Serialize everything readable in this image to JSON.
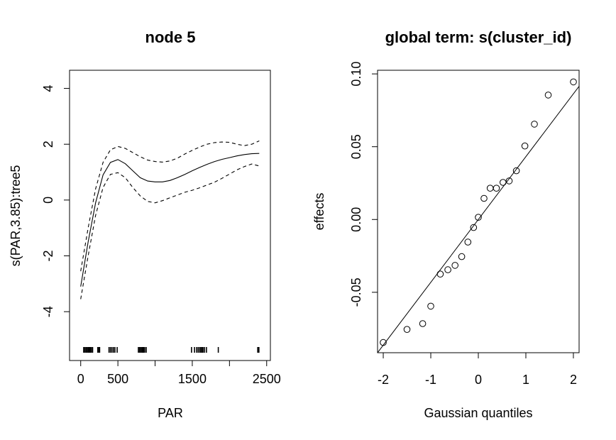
{
  "chart_data": [
    {
      "type": "line",
      "title": "node 5",
      "xlabel": "PAR",
      "ylabel": "s(PAR,3.85):tree5",
      "xlim": [
        -150,
        2550
      ],
      "ylim": [
        -5.75,
        4.65
      ],
      "xticks": [
        0,
        500,
        1500,
        2500
      ],
      "xtick_labels": [
        "0",
        "500",
        "1500",
        "2500"
      ],
      "yticks": [
        -4,
        -2,
        0,
        2,
        4
      ],
      "ytick_labels": [
        "-4",
        "-2",
        "0",
        "2",
        "4"
      ],
      "grid": false,
      "legend": "none",
      "series": [
        {
          "role": "fit",
          "style": "solid",
          "x": [
            0,
            100,
            200,
            300,
            400,
            500,
            600,
            700,
            800,
            900,
            1000,
            1100,
            1200,
            1300,
            1400,
            1500,
            1600,
            1700,
            1800,
            1900,
            2000,
            2100,
            2200,
            2300,
            2400
          ],
          "y": [
            -3.1,
            -1.5,
            -0.1,
            0.9,
            1.35,
            1.45,
            1.3,
            1.05,
            0.8,
            0.68,
            0.65,
            0.65,
            0.7,
            0.8,
            0.92,
            1.05,
            1.17,
            1.28,
            1.38,
            1.46,
            1.52,
            1.58,
            1.63,
            1.66,
            1.67
          ]
        },
        {
          "role": "upper_band",
          "style": "dashed",
          "x": [
            0,
            100,
            200,
            300,
            400,
            500,
            600,
            700,
            800,
            900,
            1000,
            1100,
            1200,
            1300,
            1400,
            1500,
            1600,
            1700,
            1800,
            1900,
            2000,
            2100,
            2200,
            2300,
            2400
          ],
          "y": [
            -2.55,
            -1.0,
            0.4,
            1.35,
            1.8,
            1.92,
            1.85,
            1.7,
            1.55,
            1.43,
            1.38,
            1.36,
            1.4,
            1.5,
            1.65,
            1.78,
            1.9,
            2.0,
            2.06,
            2.08,
            2.07,
            2.0,
            1.95,
            2.0,
            2.12
          ]
        },
        {
          "role": "lower_band",
          "style": "dashed",
          "x": [
            0,
            100,
            200,
            300,
            400,
            500,
            600,
            700,
            800,
            900,
            1000,
            1100,
            1200,
            1300,
            1400,
            1500,
            1600,
            1700,
            1800,
            1900,
            2000,
            2100,
            2200,
            2300,
            2400
          ],
          "y": [
            -3.55,
            -2.0,
            -0.55,
            0.45,
            0.92,
            0.98,
            0.8,
            0.45,
            0.15,
            -0.05,
            -0.1,
            -0.02,
            0.08,
            0.18,
            0.28,
            0.35,
            0.44,
            0.54,
            0.64,
            0.78,
            0.93,
            1.08,
            1.2,
            1.29,
            1.22
          ]
        }
      ],
      "rug": [
        40,
        55,
        70,
        85,
        100,
        115,
        130,
        145,
        160,
        230,
        245,
        255,
        380,
        400,
        420,
        440,
        460,
        490,
        775,
        790,
        805,
        815,
        830,
        845,
        860,
        880,
        1490,
        1530,
        1560,
        1580,
        1600,
        1615,
        1630,
        1645,
        1665,
        1690,
        1850,
        2380,
        2395
      ]
    },
    {
      "type": "scatter",
      "title": "global term: s(cluster_id)",
      "xlabel": "Gaussian quantiles",
      "ylabel": "effects",
      "xlim": [
        -2.12,
        2.12
      ],
      "ylim": [
        -0.0915,
        0.1025
      ],
      "xticks": [
        -2,
        -1,
        0,
        1,
        2
      ],
      "xtick_labels": [
        "-2",
        "-1",
        "0",
        "1",
        "2"
      ],
      "yticks": [
        -0.05,
        0.0,
        0.05,
        0.1
      ],
      "ytick_labels": [
        "-0.05",
        "0.00",
        "0.05",
        "0.10"
      ],
      "grid": false,
      "legend": "none",
      "points": {
        "x": [
          -2.0,
          -1.5,
          -1.17,
          -1.0,
          -0.8,
          -0.64,
          -0.49,
          -0.35,
          -0.22,
          -0.1,
          0.0,
          0.12,
          0.25,
          0.38,
          0.52,
          0.65,
          0.8,
          0.98,
          1.18,
          1.47,
          2.0
        ],
        "y": [
          -0.0845,
          -0.0755,
          -0.0715,
          -0.0595,
          -0.0375,
          -0.0345,
          -0.0315,
          -0.0255,
          -0.0155,
          -0.0055,
          0.0015,
          0.0145,
          0.0215,
          0.0215,
          0.0255,
          0.0265,
          0.0335,
          0.0505,
          0.0655,
          0.0855,
          0.0945
        ]
      },
      "reference_line": {
        "x": [
          -2.12,
          2.12
        ],
        "y": [
          -0.0915,
          0.0915
        ]
      }
    }
  ]
}
